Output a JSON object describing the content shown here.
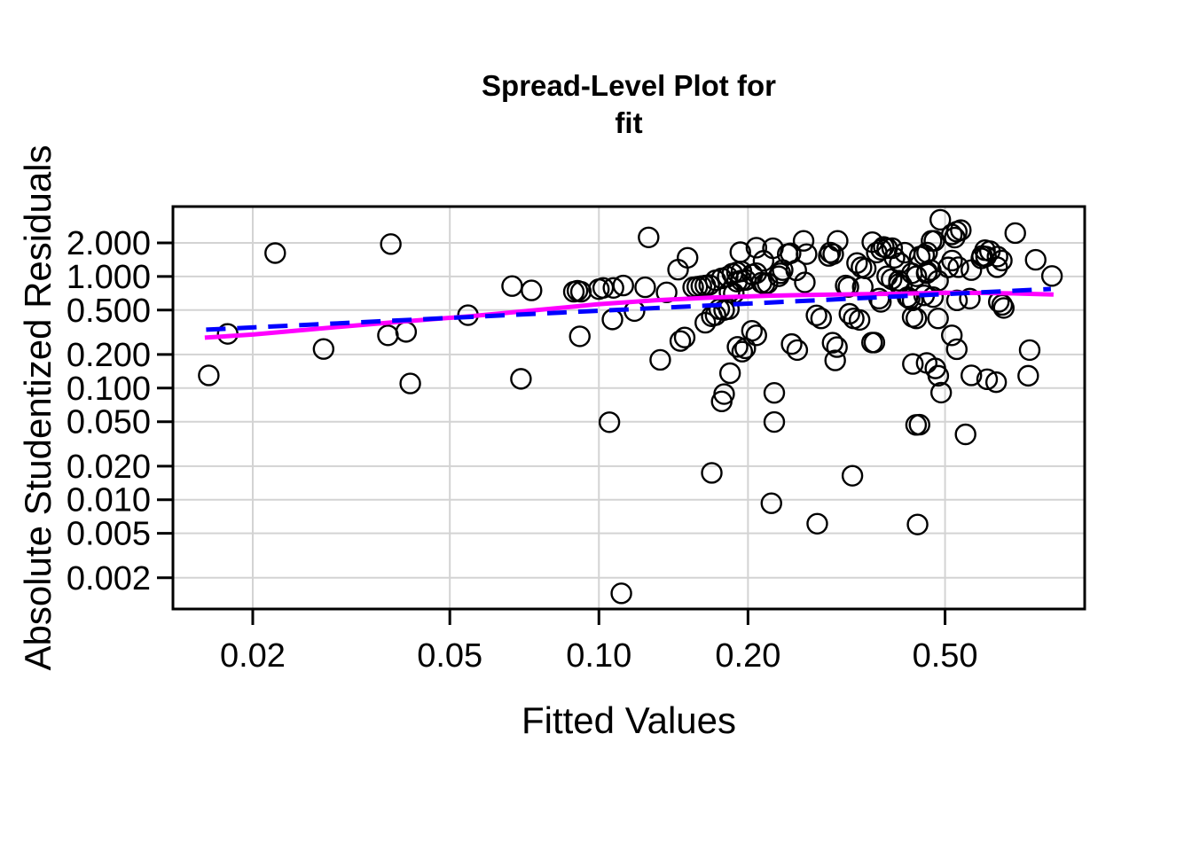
{
  "figure": {
    "title_line1": "Spread-Level Plot for",
    "title_line2": "fit",
    "xlabel": "Fitted Values",
    "ylabel": "Absolute Studentized Residuals",
    "background": "#ffffff",
    "axis_color": "#000000"
  },
  "chart_data": {
    "type": "scatter",
    "title": "Spread-Level Plot for fit",
    "xlabel": "Fitted Values",
    "ylabel": "Absolute Studentized Residuals",
    "x_scale": "log",
    "y_scale": "log",
    "xlim": [
      0.0138,
      0.957
    ],
    "ylim": [
      0.00105,
      4.23
    ],
    "grid": true,
    "grid_color": "#d3d3d3",
    "legend": "none",
    "x_ticks": [
      {
        "v": 0.02,
        "label": "0.02"
      },
      {
        "v": 0.05,
        "label": "0.05"
      },
      {
        "v": 0.1,
        "label": "0.10"
      },
      {
        "v": 0.2,
        "label": "0.20"
      },
      {
        "v": 0.5,
        "label": "0.50"
      }
    ],
    "y_ticks": [
      {
        "v": 2.0,
        "label": "2.000"
      },
      {
        "v": 1.0,
        "label": "1.000"
      },
      {
        "v": 0.5,
        "label": "0.500"
      },
      {
        "v": 0.2,
        "label": "0.200"
      },
      {
        "v": 0.1,
        "label": "0.100"
      },
      {
        "v": 0.05,
        "label": "0.050"
      },
      {
        "v": 0.02,
        "label": "0.020"
      },
      {
        "v": 0.01,
        "label": "0.010"
      },
      {
        "v": 0.005,
        "label": "0.005"
      },
      {
        "v": 0.002,
        "label": "0.002"
      }
    ],
    "point_style": {
      "shape": "open-circle",
      "color": "#000000",
      "radius": 11,
      "stroke_width": 2.4
    },
    "points": [
      [
        0.0163,
        0.13
      ],
      [
        0.0178,
        0.306
      ],
      [
        0.0222,
        1.62
      ],
      [
        0.0278,
        0.224
      ],
      [
        0.0375,
        0.297
      ],
      [
        0.038,
        1.95
      ],
      [
        0.0408,
        0.319
      ],
      [
        0.0416,
        0.11
      ],
      [
        0.0544,
        0.45
      ],
      [
        0.0668,
        0.82
      ],
      [
        0.0696,
        0.121
      ],
      [
        0.0731,
        0.75
      ],
      [
        0.089,
        0.73
      ],
      [
        0.0905,
        0.745
      ],
      [
        0.092,
        0.73
      ],
      [
        0.0915,
        0.291
      ],
      [
        0.1,
        0.77
      ],
      [
        0.102,
        0.79
      ],
      [
        0.105,
        0.0495
      ],
      [
        0.1065,
        0.412
      ],
      [
        0.107,
        0.79
      ],
      [
        0.111,
        0.00145
      ],
      [
        0.112,
        0.83
      ],
      [
        0.118,
        0.49
      ],
      [
        0.124,
        0.8
      ],
      [
        0.126,
        2.24
      ],
      [
        0.133,
        0.179
      ],
      [
        0.137,
        0.72
      ],
      [
        0.1445,
        1.15
      ],
      [
        0.146,
        0.264
      ],
      [
        0.149,
        0.284
      ],
      [
        0.151,
        1.47
      ],
      [
        0.155,
        0.8
      ],
      [
        0.158,
        0.81
      ],
      [
        0.161,
        0.82
      ],
      [
        0.164,
        0.83
      ],
      [
        0.167,
        0.84
      ],
      [
        0.164,
        0.385
      ],
      [
        0.169,
        0.44
      ],
      [
        0.172,
        0.45
      ],
      [
        0.169,
        0.0174
      ],
      [
        0.172,
        0.925
      ],
      [
        0.177,
        0.962
      ],
      [
        0.182,
        0.994
      ],
      [
        0.175,
        0.51
      ],
      [
        0.179,
        0.5
      ],
      [
        0.183,
        0.51
      ],
      [
        0.177,
        0.076
      ],
      [
        0.179,
        0.0884
      ],
      [
        0.184,
        0.136
      ],
      [
        0.1835,
        0.723
      ],
      [
        0.1872,
        0.705
      ],
      [
        0.186,
        1.06
      ],
      [
        0.19,
        1.09
      ],
      [
        0.194,
        1.11
      ],
      [
        0.19,
        0.9
      ],
      [
        0.194,
        0.92
      ],
      [
        0.198,
        0.93
      ],
      [
        0.1905,
        0.234
      ],
      [
        0.1947,
        0.212
      ],
      [
        0.1975,
        0.227
      ],
      [
        0.193,
        1.65
      ],
      [
        0.204,
        1.04
      ],
      [
        0.208,
        1.07
      ],
      [
        0.2037,
        0.326
      ],
      [
        0.2079,
        0.297
      ],
      [
        0.208,
        1.81
      ],
      [
        0.215,
        1.38
      ],
      [
        0.213,
        0.88
      ],
      [
        0.216,
        0.857
      ],
      [
        0.219,
        0.87
      ],
      [
        0.223,
        0.0093
      ],
      [
        0.226,
        0.0906
      ],
      [
        0.226,
        0.0497
      ],
      [
        0.2246,
        1.79
      ],
      [
        0.2307,
        1.004
      ],
      [
        0.2324,
        1.068
      ],
      [
        0.235,
        1.14
      ],
      [
        0.2406,
        1.586
      ],
      [
        0.2438,
        1.611
      ],
      [
        0.245,
        0.248
      ],
      [
        0.2515,
        0.219
      ],
      [
        0.2503,
        1.135
      ],
      [
        0.259,
        2.085
      ],
      [
        0.2605,
        0.885
      ],
      [
        0.2626,
        1.586
      ],
      [
        0.275,
        0.448
      ],
      [
        0.276,
        0.0061
      ],
      [
        0.281,
        0.421
      ],
      [
        0.2912,
        1.528
      ],
      [
        0.2932,
        1.637
      ],
      [
        0.2964,
        0.255
      ],
      [
        0.2973,
        1.586
      ],
      [
        0.3,
        0.177
      ],
      [
        0.3025,
        0.2328
      ],
      [
        0.3034,
        2.085
      ],
      [
        0.315,
        0.83
      ],
      [
        0.319,
        0.805
      ],
      [
        0.3205,
        0.463
      ],
      [
        0.325,
        0.0164
      ],
      [
        0.327,
        0.421
      ],
      [
        0.336,
        0.408
      ],
      [
        0.3321,
        1.32
      ],
      [
        0.339,
        1.21
      ],
      [
        0.341,
        0.805
      ],
      [
        0.3458,
        1.18
      ],
      [
        0.356,
        0.256
      ],
      [
        0.36,
        0.256
      ],
      [
        0.3565,
        2.03
      ],
      [
        0.364,
        1.637
      ],
      [
        0.368,
        0.633
      ],
      [
        0.371,
        0.592
      ],
      [
        0.3715,
        1.737
      ],
      [
        0.376,
        1.84
      ],
      [
        0.382,
        1.793
      ],
      [
        0.382,
        1.004
      ],
      [
        0.39,
        0.945
      ],
      [
        0.391,
        1.793
      ],
      [
        0.3952,
        1.47
      ],
      [
        0.4035,
        0.916
      ],
      [
        0.4035,
        0.857
      ],
      [
        0.405,
        1.315
      ],
      [
        0.409,
        0.83
      ],
      [
        0.4146,
        1.634
      ],
      [
        0.42,
        0.653
      ],
      [
        0.424,
        0.633
      ],
      [
        0.4287,
        1.068
      ],
      [
        0.43,
        0.611
      ],
      [
        0.43,
        0.434
      ],
      [
        0.4305,
        0.1645
      ],
      [
        0.4375,
        1.004
      ],
      [
        0.4375,
        0.421
      ],
      [
        0.437,
        0.0468
      ],
      [
        0.444,
        0.047
      ],
      [
        0.44,
        0.006
      ],
      [
        0.4444,
        1.508
      ],
      [
        0.4537,
        1.56
      ],
      [
        0.4537,
        0.677
      ],
      [
        0.459,
        1.068
      ],
      [
        0.459,
        0.168
      ],
      [
        0.46,
        1.637
      ],
      [
        0.46,
        1.1
      ],
      [
        0.468,
        1.14
      ],
      [
        0.4695,
        2.085
      ],
      [
        0.4727,
        0.653
      ],
      [
        0.4758,
        2.085
      ],
      [
        0.478,
        0.15
      ],
      [
        0.4845,
        0.129
      ],
      [
        0.484,
        0.916
      ],
      [
        0.484,
        0.421
      ],
      [
        0.489,
        3.22
      ],
      [
        0.491,
        0.0911
      ],
      [
        0.5075,
        1.206
      ],
      [
        0.516,
        2.38
      ],
      [
        0.516,
        0.297
      ],
      [
        0.5165,
        1.388
      ],
      [
        0.523,
        2.23
      ],
      [
        0.528,
        2.52
      ],
      [
        0.528,
        0.223
      ],
      [
        0.5285,
        0.611
      ],
      [
        0.532,
        1.21
      ],
      [
        0.538,
        2.6
      ],
      [
        0.55,
        0.0385
      ],
      [
        0.561,
        0.633
      ],
      [
        0.565,
        1.14
      ],
      [
        0.565,
        0.13
      ],
      [
        0.592,
        1.452
      ],
      [
        0.594,
        1.528
      ],
      [
        0.602,
        1.72
      ],
      [
        0.605,
        1.508
      ],
      [
        0.608,
        0.12
      ],
      [
        0.616,
        1.687
      ],
      [
        0.634,
        0.113
      ],
      [
        0.637,
        1.21
      ],
      [
        0.638,
        1.508
      ],
      [
        0.642,
        0.592
      ],
      [
        0.651,
        1.39
      ],
      [
        0.652,
        0.556
      ],
      [
        0.657,
        0.522
      ],
      [
        0.693,
        2.446
      ],
      [
        0.736,
        0.129
      ],
      [
        0.741,
        0.219
      ],
      [
        0.762,
        1.41
      ],
      [
        0.822,
        1.01
      ]
    ],
    "series": [
      {
        "name": "lowess-smooth",
        "color": "#ff00ff",
        "style": "solid",
        "stroke_width": 5,
        "points": [
          [
            0.016,
            0.283
          ],
          [
            0.02,
            0.302
          ],
          [
            0.028,
            0.345
          ],
          [
            0.04,
            0.395
          ],
          [
            0.055,
            0.44
          ],
          [
            0.075,
            0.5
          ],
          [
            0.1,
            0.565
          ],
          [
            0.13,
            0.612
          ],
          [
            0.17,
            0.648
          ],
          [
            0.22,
            0.672
          ],
          [
            0.3,
            0.69
          ],
          [
            0.4,
            0.7
          ],
          [
            0.5,
            0.715
          ],
          [
            0.6,
            0.712
          ],
          [
            0.7,
            0.703
          ],
          [
            0.828,
            0.69
          ]
        ]
      },
      {
        "name": "power-fit-line",
        "color": "#0000ff",
        "style": "dashed",
        "stroke_width": 5,
        "dash": "22 13",
        "points": [
          [
            0.0161,
            0.3335
          ],
          [
            0.818,
            0.773
          ]
        ]
      }
    ]
  }
}
